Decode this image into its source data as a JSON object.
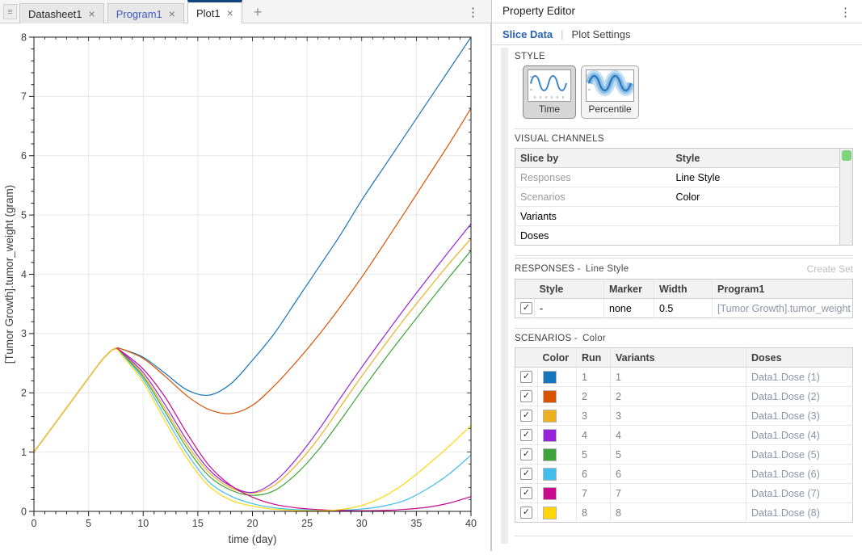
{
  "window": {
    "panel_grip_icon": "≡",
    "tab_menu_icon": "⋮"
  },
  "document_tabs": [
    {
      "label": "Datasheet1",
      "close": "×",
      "active": false,
      "modified": false
    },
    {
      "label": "Program1",
      "close": "×",
      "active": false,
      "modified": true
    },
    {
      "label": "Plot1",
      "close": "×",
      "active": true,
      "modified": false
    }
  ],
  "new_tab_label": "+",
  "property_editor": {
    "title": "Property Editor",
    "menu_icon": "⋮",
    "tabs": [
      {
        "label": "Slice Data",
        "active": true
      },
      {
        "label": "Plot Settings",
        "active": false
      }
    ],
    "style": {
      "heading": "STYLE",
      "options": [
        {
          "label": "Time",
          "selected": true
        },
        {
          "label": "Percentile",
          "selected": false
        }
      ]
    },
    "visual_channels": {
      "heading": "VISUAL CHANNELS",
      "columns": [
        "Slice by",
        "Style"
      ],
      "indicator_color": "#7CD47C",
      "rows": [
        {
          "slice_by": "Responses",
          "style": "Line Style",
          "assigned": true
        },
        {
          "slice_by": "Scenarios",
          "style": "Color",
          "assigned": true
        },
        {
          "slice_by": "Variants",
          "style": "",
          "assigned": false
        },
        {
          "slice_by": "Doses",
          "style": "",
          "assigned": false
        }
      ]
    },
    "responses": {
      "heading": "RESPONSES -",
      "style_name": "Line Style",
      "create_set_label": "Create Set",
      "columns": [
        "Style",
        "Marker",
        "Width",
        "Program1"
      ],
      "rows": [
        {
          "checked": true,
          "style": "-",
          "marker": "none",
          "width": "0.5",
          "program1": "[Tumor Growth].tumor_weight"
        }
      ]
    },
    "scenarios": {
      "heading": "SCENARIOS -",
      "style_name": "Color",
      "columns": [
        "Color",
        "Run",
        "Variants",
        "Doses"
      ],
      "rows": [
        {
          "checked": true,
          "color": "#1775BC",
          "run": "1",
          "variants": "1",
          "doses": "Data1.Dose (1)"
        },
        {
          "checked": true,
          "color": "#D85200",
          "run": "2",
          "variants": "2",
          "doses": "Data1.Dose (2)"
        },
        {
          "checked": true,
          "color": "#ECB01F",
          "run": "3",
          "variants": "3",
          "doses": "Data1.Dose (3)"
        },
        {
          "checked": true,
          "color": "#9623DB",
          "run": "4",
          "variants": "4",
          "doses": "Data1.Dose (4)"
        },
        {
          "checked": true,
          "color": "#3EA439",
          "run": "5",
          "variants": "5",
          "doses": "Data1.Dose (5)"
        },
        {
          "checked": true,
          "color": "#41BEEC",
          "run": "6",
          "variants": "6",
          "doses": "Data1.Dose (6)"
        },
        {
          "checked": true,
          "color": "#C90A8C",
          "run": "7",
          "variants": "7",
          "doses": "Data1.Dose (7)"
        },
        {
          "checked": true,
          "color": "#FED60A",
          "run": "8",
          "variants": "8",
          "doses": "Data1.Dose (8)"
        }
      ]
    }
  },
  "chart_data": {
    "type": "line",
    "title": "",
    "xlabel": "time (day)",
    "ylabel": "[Tumor Growth].tumor_weight (gram)",
    "xlim": [
      0,
      40
    ],
    "ylim": [
      0,
      8
    ],
    "xticks": [
      0,
      5,
      10,
      15,
      20,
      25,
      30,
      35,
      40
    ],
    "yticks": [
      0,
      1,
      2,
      3,
      4,
      5,
      6,
      7,
      8
    ],
    "x_minor_step": 1,
    "y_minor_step": 0.2,
    "grid": true,
    "legend_position": "none",
    "x": [
      0,
      2,
      4,
      6,
      7,
      7.5,
      8,
      10,
      12,
      14,
      16,
      18,
      20,
      22,
      24,
      26,
      28,
      30,
      32,
      34,
      36,
      38,
      40
    ],
    "series": [
      {
        "name": "Run 1",
        "color": "#1775BC",
        "values": [
          1.0,
          1.5,
          2.0,
          2.5,
          2.7,
          2.75,
          2.74,
          2.6,
          2.33,
          2.05,
          1.96,
          2.15,
          2.55,
          3.0,
          3.55,
          4.1,
          4.65,
          5.25,
          5.8,
          6.35,
          6.9,
          7.45,
          8.0
        ]
      },
      {
        "name": "Run 2",
        "color": "#D85200",
        "values": [
          1.0,
          1.5,
          2.0,
          2.5,
          2.7,
          2.75,
          2.74,
          2.58,
          2.28,
          1.95,
          1.72,
          1.65,
          1.79,
          2.12,
          2.52,
          2.96,
          3.44,
          3.95,
          4.5,
          5.06,
          5.63,
          6.2,
          6.8
        ]
      },
      {
        "name": "Run 3",
        "color": "#ECB01F",
        "values": [
          1.0,
          1.5,
          2.0,
          2.5,
          2.7,
          2.74,
          2.68,
          2.3,
          1.73,
          1.13,
          0.66,
          0.4,
          0.31,
          0.44,
          0.78,
          1.22,
          1.75,
          2.28,
          2.78,
          3.27,
          3.73,
          4.18,
          4.6
        ]
      },
      {
        "name": "Run 4",
        "color": "#9623DB",
        "values": [
          1.0,
          1.5,
          2.0,
          2.5,
          2.7,
          2.74,
          2.69,
          2.34,
          1.8,
          1.2,
          0.71,
          0.43,
          0.32,
          0.5,
          0.88,
          1.36,
          1.9,
          2.43,
          2.94,
          3.44,
          3.92,
          4.39,
          4.85
        ]
      },
      {
        "name": "Run 5",
        "color": "#3EA439",
        "values": [
          1.0,
          1.5,
          2.0,
          2.5,
          2.7,
          2.74,
          2.67,
          2.27,
          1.68,
          1.07,
          0.6,
          0.36,
          0.27,
          0.35,
          0.63,
          1.03,
          1.52,
          2.04,
          2.54,
          3.02,
          3.49,
          3.95,
          4.4
        ]
      },
      {
        "name": "Run 6",
        "color": "#41BEEC",
        "values": [
          1.0,
          1.5,
          2.0,
          2.5,
          2.7,
          2.74,
          2.66,
          2.23,
          1.6,
          0.98,
          0.5,
          0.26,
          0.13,
          0.06,
          0.03,
          0.02,
          0.02,
          0.04,
          0.09,
          0.19,
          0.38,
          0.63,
          0.95
        ]
      },
      {
        "name": "Run 7",
        "color": "#C90A8C",
        "values": [
          1.0,
          1.5,
          2.0,
          2.5,
          2.7,
          2.74,
          2.7,
          2.4,
          1.93,
          1.32,
          0.78,
          0.44,
          0.24,
          0.12,
          0.06,
          0.03,
          0.015,
          0.01,
          0.015,
          0.035,
          0.07,
          0.14,
          0.25
        ]
      },
      {
        "name": "Run 8",
        "color": "#FED60A",
        "values": [
          1.0,
          1.5,
          2.0,
          2.5,
          2.7,
          2.74,
          2.65,
          2.18,
          1.52,
          0.9,
          0.43,
          0.19,
          0.09,
          0.035,
          0.015,
          0.01,
          0.03,
          0.1,
          0.25,
          0.48,
          0.78,
          1.1,
          1.45
        ]
      }
    ]
  }
}
